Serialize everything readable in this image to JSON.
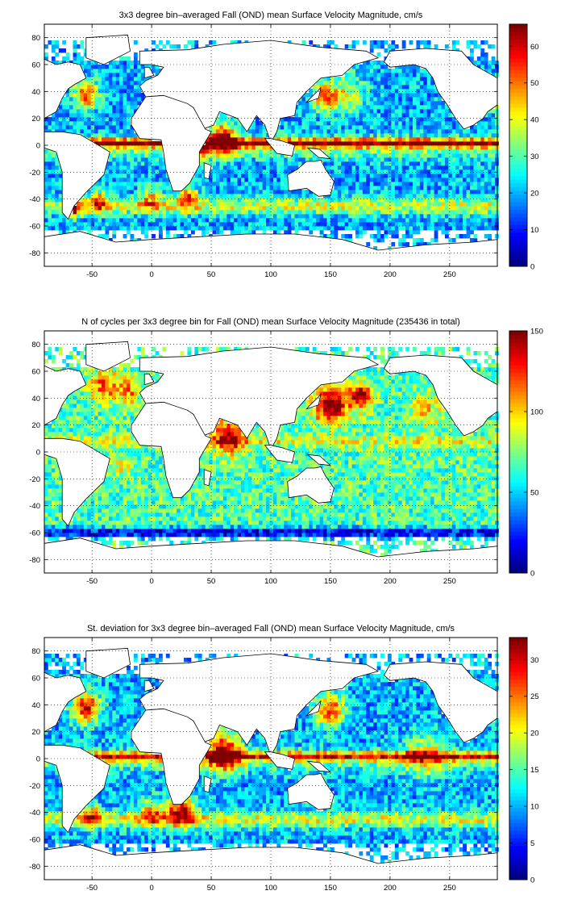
{
  "chart_data": [
    {
      "type": "heatmap",
      "title": "3x3 degree bin–averaged Fall (OND) mean Surface Velocity Magnitude, cm/s",
      "xlim": [
        -90,
        290
      ],
      "ylim": [
        -90,
        90
      ],
      "xticks": [
        -50,
        0,
        50,
        100,
        150,
        200,
        250
      ],
      "yticks": [
        80,
        60,
        40,
        20,
        0,
        -20,
        -40,
        -60,
        -80
      ],
      "grid": true,
      "colorbar": {
        "min": 0,
        "max": 66,
        "ticks": [
          0,
          10,
          20,
          30,
          40,
          50,
          60
        ],
        "colormap": "jet"
      },
      "seed": 11,
      "base": 0.3,
      "bands": [
        {
          "lat": 2,
          "w": 3,
          "amp": 0.55
        },
        {
          "lat": -1,
          "w": 8,
          "amp": 0.22
        },
        {
          "lat": -45,
          "w": 6,
          "amp": 0.28
        }
      ],
      "hotspots": [
        {
          "lon": 290,
          "lat": 38,
          "r": 10,
          "amp": 0.5
        },
        {
          "lon": -55,
          "lat": 38,
          "r": 10,
          "amp": 0.55
        },
        {
          "lon": 145,
          "lat": 36,
          "r": 10,
          "amp": 0.5
        },
        {
          "lon": 165,
          "lat": 38,
          "r": 14,
          "amp": 0.3
        },
        {
          "lon": 60,
          "lat": 5,
          "r": 12,
          "amp": 0.6
        },
        {
          "lon": 40,
          "lat": -3,
          "r": 8,
          "amp": 0.4
        },
        {
          "lon": 30,
          "lat": -38,
          "r": 8,
          "amp": 0.5
        },
        {
          "lon": 0,
          "lat": -40,
          "r": 10,
          "amp": 0.3
        },
        {
          "lon": -45,
          "lat": -42,
          "r": 8,
          "amp": 0.4
        },
        {
          "lon": -65,
          "lat": -48,
          "r": 6,
          "amp": 0.45
        }
      ]
    },
    {
      "type": "heatmap",
      "title": "N of cycles per 3x3 degree bin for Fall (OND) mean Surface Velocity Magnitude (235436 in total)",
      "xlim": [
        -90,
        290
      ],
      "ylim": [
        -90,
        90
      ],
      "xticks": [
        -50,
        0,
        50,
        100,
        150,
        200,
        250
      ],
      "yticks": [
        80,
        60,
        40,
        20,
        0,
        -20,
        -40,
        -60,
        -80
      ],
      "grid": true,
      "colorbar": {
        "min": 0,
        "max": 150,
        "ticks": [
          0,
          50,
          100,
          150
        ],
        "colormap": "jet"
      },
      "seed": 23,
      "base": 0.45,
      "bands": [
        {
          "lat": 8,
          "w": 4,
          "amp": 0.15
        },
        {
          "lat": -60,
          "w": 4,
          "amp": -0.35
        }
      ],
      "hotspots": [
        {
          "lon": 150,
          "lat": 35,
          "r": 14,
          "amp": 0.6
        },
        {
          "lon": 175,
          "lat": 42,
          "r": 10,
          "amp": 0.5
        },
        {
          "lon": 65,
          "lat": 12,
          "r": 14,
          "amp": 0.45
        },
        {
          "lon": -40,
          "lat": 50,
          "r": 12,
          "amp": 0.35
        },
        {
          "lon": -20,
          "lat": 45,
          "r": 10,
          "amp": 0.3
        },
        {
          "lon": 230,
          "lat": 30,
          "r": 14,
          "amp": 0.2
        },
        {
          "lon": -25,
          "lat": -10,
          "r": 10,
          "amp": 0.15
        }
      ]
    },
    {
      "type": "heatmap",
      "title": "St. deviation for 3x3 degree bin–averaged Fall (OND) mean Surface Velocity Magnitude, cm/s",
      "xlim": [
        -90,
        290
      ],
      "ylim": [
        -90,
        90
      ],
      "xticks": [
        -50,
        0,
        50,
        100,
        150,
        200,
        250
      ],
      "yticks": [
        80,
        60,
        40,
        20,
        0,
        -20,
        -40,
        -60,
        -80
      ],
      "grid": true,
      "colorbar": {
        "min": 0,
        "max": 33,
        "ticks": [
          0,
          5,
          10,
          15,
          20,
          25,
          30
        ],
        "colormap": "jet"
      },
      "seed": 37,
      "base": 0.3,
      "bands": [
        {
          "lat": 2,
          "w": 3,
          "amp": 0.45
        },
        {
          "lat": -1,
          "w": 8,
          "amp": 0.2
        },
        {
          "lat": -45,
          "w": 6,
          "amp": 0.3
        }
      ],
      "hotspots": [
        {
          "lon": -55,
          "lat": 38,
          "r": 12,
          "amp": 0.6
        },
        {
          "lon": 150,
          "lat": 36,
          "r": 12,
          "amp": 0.55
        },
        {
          "lon": 60,
          "lat": 5,
          "r": 14,
          "amp": 0.65
        },
        {
          "lon": 25,
          "lat": -38,
          "r": 12,
          "amp": 0.6
        },
        {
          "lon": 0,
          "lat": -40,
          "r": 10,
          "amp": 0.35
        },
        {
          "lon": -50,
          "lat": -42,
          "r": 8,
          "amp": 0.4
        },
        {
          "lon": 290,
          "lat": 38,
          "r": 10,
          "amp": 0.5
        },
        {
          "lon": 230,
          "lat": 3,
          "r": 16,
          "amp": 0.3
        }
      ]
    }
  ]
}
